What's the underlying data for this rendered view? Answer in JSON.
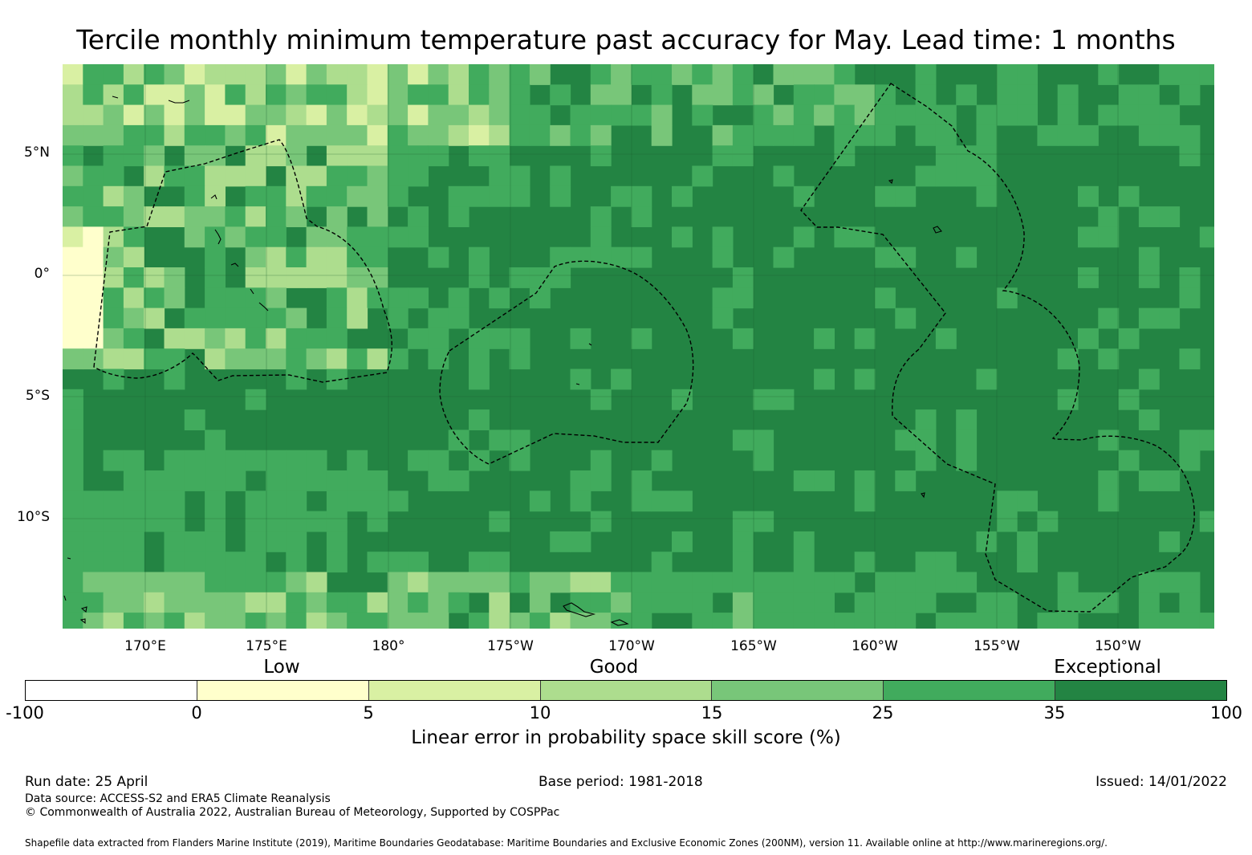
{
  "title": "Tercile monthly minimum temperature past accuracy for May. Lead time: 1 months",
  "map": {
    "lat_labels": [
      "5°N",
      "0°",
      "5°S",
      "10°S"
    ],
    "lon_labels": [
      "170°E",
      "175°E",
      "180°",
      "175°W",
      "170°W",
      "165°W",
      "160°W",
      "155°W",
      "150°W"
    ],
    "colors": {
      "lt0": "#ffffff",
      "c0_5": "#ffffcc",
      "c5_10": "#d9f0a3",
      "c10_15": "#addd8e",
      "c15_25": "#78c679",
      "c25_35": "#41ab5d",
      "c35_100": "#238443"
    }
  },
  "legend": {
    "levels": [
      "Low",
      "Good",
      "Exceptional"
    ],
    "ticks": [
      "-100",
      "0",
      "5",
      "10",
      "15",
      "25",
      "35",
      "100"
    ],
    "colors": [
      "#ffffff",
      "#ffffcc",
      "#d9f0a3",
      "#addd8e",
      "#78c679",
      "#41ab5d",
      "#238443"
    ],
    "label": "Linear error in probability space skill score (%)"
  },
  "footer": {
    "run_date": "Run date: 25 April",
    "base_period": "Base period: 1981-2018",
    "issued": "Issued: 14/01/2022",
    "data_source": "Data source: ACCESS-S2 and ERA5 Climate Reanalysis",
    "copyright": "© Commonwealth of Australia 2022, Australian Bureau of Meteorology, Supported by COSPPac",
    "shapefile": "Shapefile data extracted from Flanders Marine Institute (2019), Maritime Boundaries Geodatabase: Maritime Boundaries and Exclusive Economic Zones (200NM), version 11. Available online at http://www.marineregions.org/."
  }
}
